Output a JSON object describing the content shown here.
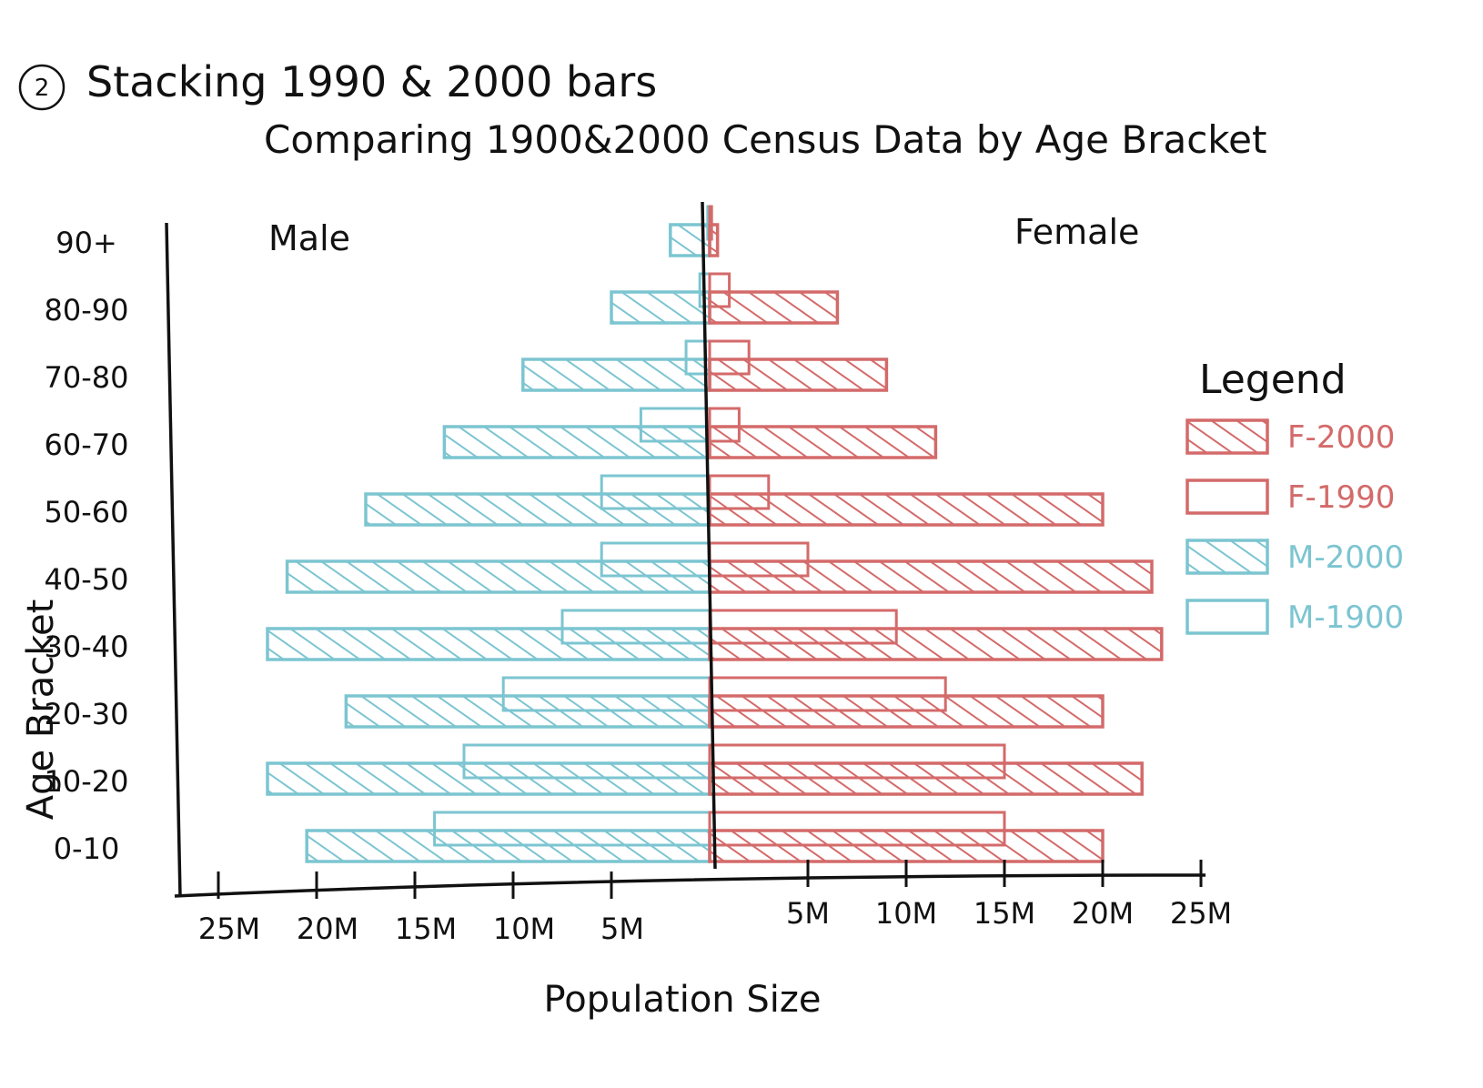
{
  "header": {
    "number": "2",
    "line1": "Stacking 1990 & 2000 bars",
    "line2": "Comparing 1900&2000 Census Data by Age Bracket"
  },
  "side_labels": {
    "left": "Male",
    "right": "Female"
  },
  "legend": {
    "title": "Legend",
    "items": [
      {
        "label": "F-2000",
        "color": "#d46a6a",
        "hatched": true
      },
      {
        "label": "F-1990",
        "color": "#d46a6a",
        "hatched": false
      },
      {
        "label": "M-2000",
        "color": "#7cc5d1",
        "hatched": true
      },
      {
        "label": "M-1900",
        "color": "#7cc5d1",
        "hatched": false
      }
    ]
  },
  "colors": {
    "male": "#7cc5d1",
    "female": "#d46a6a",
    "axis": "#111111"
  },
  "chart_data": {
    "type": "bar",
    "orientation": "horizontal-population-pyramid",
    "xlabel": "Population Size",
    "ylabel": "Age Bracket",
    "categories": [
      "0-10",
      "10-20",
      "20-30",
      "30-40",
      "40-50",
      "50-60",
      "60-70",
      "70-80",
      "80-90",
      "90+"
    ],
    "x_ticks_left": [
      "25M",
      "20M",
      "15M",
      "10M",
      "5M"
    ],
    "x_ticks_right": [
      "5M",
      "10M",
      "15M",
      "20M",
      "25M"
    ],
    "xlim": [
      0,
      25
    ],
    "series": [
      {
        "name": "M-2000",
        "side": "left",
        "hatched": true,
        "values": [
          20.5,
          22.5,
          18.5,
          22.5,
          21.5,
          17.5,
          13.5,
          9.5,
          5,
          2
        ]
      },
      {
        "name": "M-1900",
        "side": "left",
        "hatched": false,
        "values": [
          14,
          12.5,
          10.5,
          7.5,
          5.5,
          5.5,
          3.5,
          1.2,
          0.5,
          0.1
        ]
      },
      {
        "name": "F-2000",
        "side": "right",
        "hatched": true,
        "values": [
          20,
          22,
          20,
          23,
          22.5,
          20,
          11.5,
          9,
          6.5,
          0.4
        ]
      },
      {
        "name": "F-1990",
        "side": "right",
        "hatched": false,
        "values": [
          15,
          15,
          12,
          9.5,
          5,
          3,
          1.5,
          2,
          1,
          0.1
        ]
      }
    ]
  }
}
